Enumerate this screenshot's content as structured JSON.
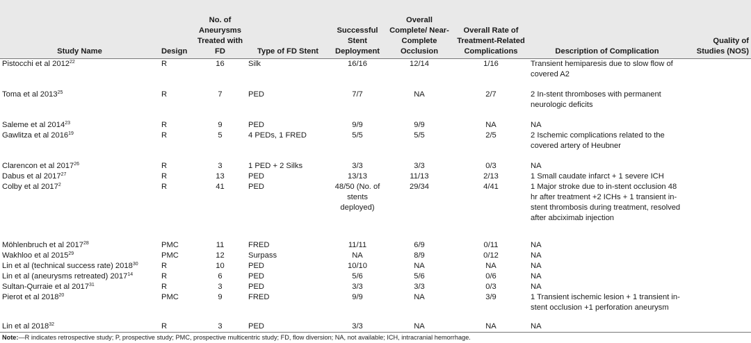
{
  "headers": {
    "study": "Study Name",
    "design": "Design",
    "aneurysms": "No. of Aneurysms Treated with FD",
    "stent": "Type of FD Stent",
    "deployment": "Successful Stent Deployment",
    "occlusion": "Overall Complete/ Near-Complete Occlusion",
    "rate": "Overall Rate of Treatment-Related Complications",
    "description": "Description of Complication",
    "quality": "Quality of Studies (NOS)"
  },
  "rows": [
    {
      "study": "Pistocchi et al 2012",
      "ref": "22",
      "design": "R",
      "aneurysms": "16",
      "stent": "Silk",
      "deployment": "16/16",
      "occlusion": "12/14",
      "rate": "1/16",
      "desc": "Transient hemiparesis due to slow flow of covered A2",
      "quality": ""
    },
    {
      "study": "Toma et al 2013",
      "ref": "25",
      "design": "R",
      "aneurysms": "7",
      "stent": "PED",
      "deployment": "7/7",
      "occlusion": "NA",
      "rate": "2/7",
      "desc": "2 In-stent thromboses with permanent neurologic deficits",
      "quality": ""
    },
    {
      "study": "Saleme et al 2014",
      "ref": "23",
      "design": "R",
      "aneurysms": "9",
      "stent": "PED",
      "deployment": "9/9",
      "occlusion": "9/9",
      "rate": "NA",
      "desc": "NA",
      "quality": ""
    },
    {
      "study": "Gawlitza et al 2016",
      "ref": "19",
      "design": "R",
      "aneurysms": "5",
      "stent": "4 PEDs, 1 FRED",
      "deployment": "5/5",
      "occlusion": "5/5",
      "rate": "2/5",
      "desc": "2 Ischemic complications related to the covered artery of Heubner",
      "quality": ""
    },
    {
      "study": "Clarencon et al 2017",
      "ref": "26",
      "design": "R",
      "aneurysms": "3",
      "stent": "1 PED + 2 Silks",
      "deployment": "3/3",
      "occlusion": "3/3",
      "rate": "0/3",
      "desc": "NA",
      "quality": ""
    },
    {
      "study": "Dabus et al 2017",
      "ref": "27",
      "design": "R",
      "aneurysms": "13",
      "stent": "PED",
      "deployment": "13/13",
      "occlusion": "11/13",
      "rate": "2/13",
      "desc": "1 Small caudate infarct + 1 severe ICH",
      "quality": ""
    },
    {
      "study": "Colby et al 2017",
      "ref": "2",
      "design": "R",
      "aneurysms": "41",
      "stent": "PED",
      "deployment": "48/50 (No. of stents deployed)",
      "occlusion": "29/34",
      "rate": "4/41",
      "desc": "1 Major stroke due to in-stent occlusion 48 hr after treatment +2 ICHs + 1 transient in-stent thrombosis during treatment, resolved after abciximab injection",
      "quality": ""
    },
    {
      "study": "Möhlenbruch et al 2017",
      "ref": "28",
      "design": "PMC",
      "aneurysms": "11",
      "stent": "FRED",
      "deployment": "11/11",
      "occlusion": "6/9",
      "rate": "0/11",
      "desc": "NA",
      "quality": ""
    },
    {
      "study": "Wakhloo et al 2015",
      "ref": "29",
      "design": "PMC",
      "aneurysms": "12",
      "stent": "Surpass",
      "deployment": "NA",
      "occlusion": "8/9",
      "rate": "0/12",
      "desc": "NA",
      "quality": ""
    },
    {
      "study": "Lin et al (technical success rate) 2018",
      "ref": "30",
      "design": "R",
      "aneurysms": "10",
      "stent": "PED",
      "deployment": "10/10",
      "occlusion": "NA",
      "rate": "NA",
      "desc": "NA",
      "quality": ""
    },
    {
      "study": "Lin et al (aneurysms retreated) 2017",
      "ref": "14",
      "design": "R",
      "aneurysms": "6",
      "stent": "PED",
      "deployment": "5/6",
      "occlusion": "5/6",
      "rate": "0/6",
      "desc": "NA",
      "quality": ""
    },
    {
      "study": "Sultan-Qurraie et al 2017",
      "ref": "31",
      "design": "R",
      "aneurysms": "3",
      "stent": "PED",
      "deployment": "3/3",
      "occlusion": "3/3",
      "rate": "0/3",
      "desc": "NA",
      "quality": ""
    },
    {
      "study": "Pierot et al 2018",
      "ref": "20",
      "design": "PMC",
      "aneurysms": "9",
      "stent": "FRED",
      "deployment": "9/9",
      "occlusion": "NA",
      "rate": "3/9",
      "desc": "1 Transient ischemic lesion + 1 transient in-stent occlusion +1 perforation aneurysm",
      "quality": ""
    },
    {
      "study": "Lin et al 2018",
      "ref": "32",
      "design": "R",
      "aneurysms": "3",
      "stent": "PED",
      "deployment": "3/3",
      "occlusion": "NA",
      "rate": "NA",
      "desc": "NA",
      "quality": ""
    }
  ],
  "note": {
    "label": "Note:",
    "text": "—R indicates retrospective study; P, prospective study; PMC, prospective multicentric study; FD, flow diversion; NA, not available; ICH, intracranial hemorrhage."
  }
}
